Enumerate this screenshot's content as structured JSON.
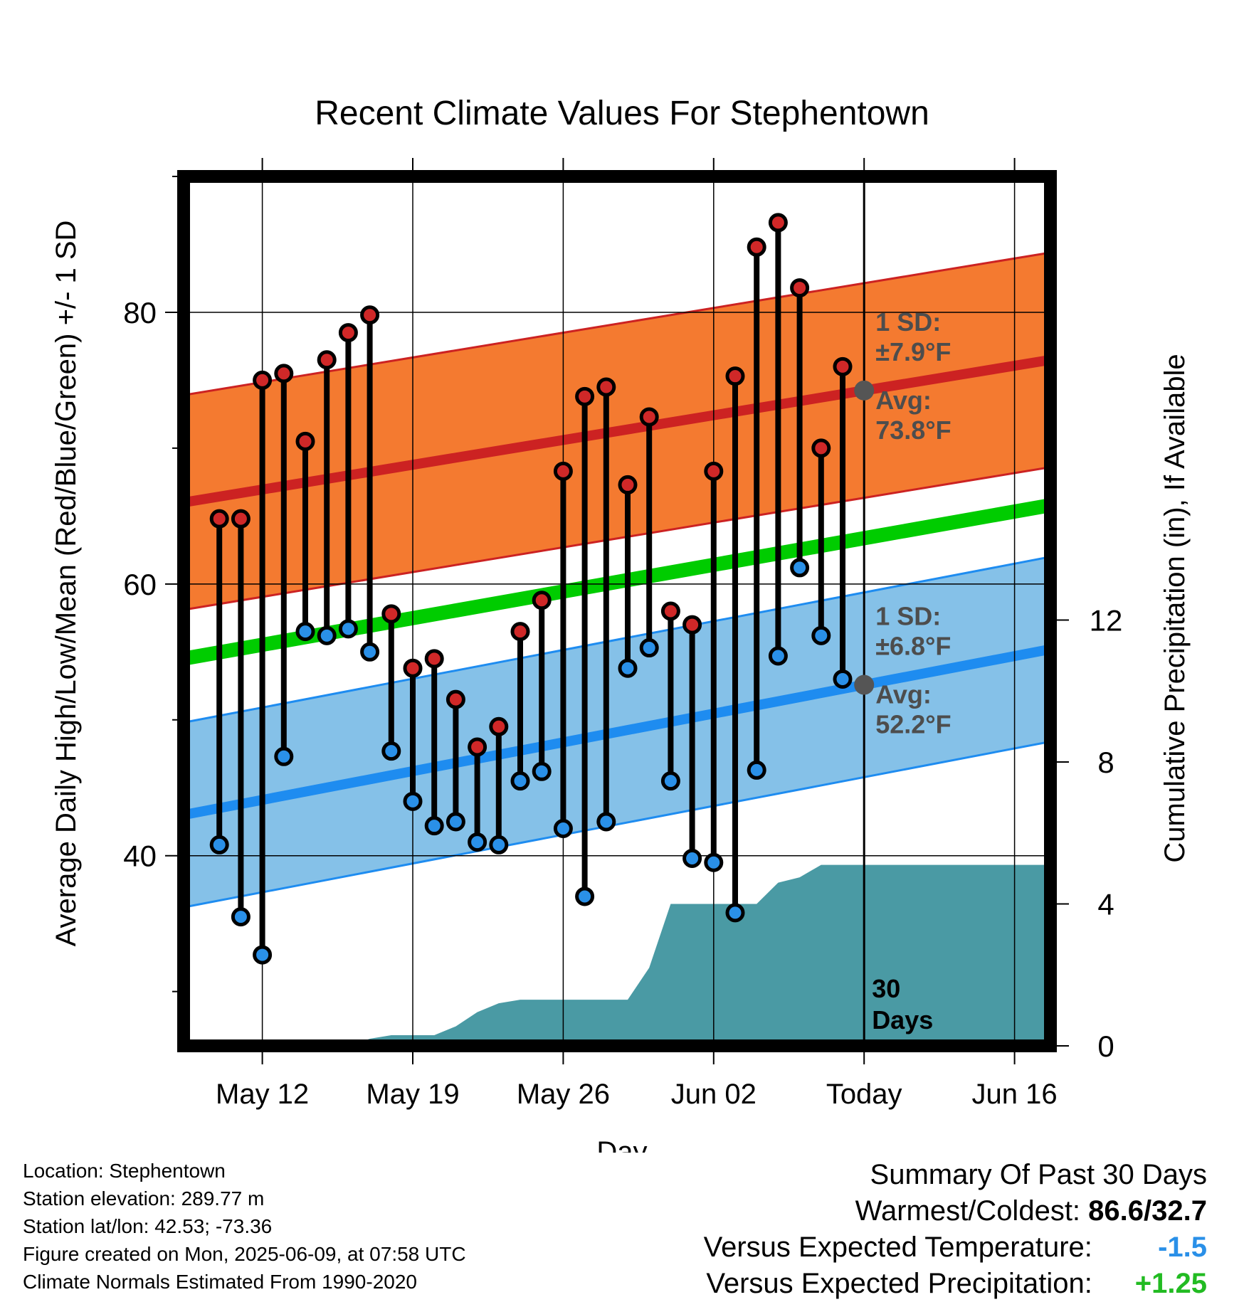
{
  "chart_data": {
    "type": "line",
    "title": "Recent Climate Values For Stephentown",
    "xlabel": "Day",
    "ylabel_left": "Average Daily High/Low/Mean (Red/Blue/Green) +/- 1 SD",
    "ylabel_right": "Cumulative Precipitation (in), If Available",
    "x_ticks": [
      "May 12",
      "May 19",
      "May 26",
      "Jun 02",
      "Today",
      "Jun 16"
    ],
    "x_range_days": [
      "May 09",
      "Jun 18"
    ],
    "today_index": 30,
    "today_label": "30 Days",
    "y_left_ticks": [
      40,
      60,
      80
    ],
    "y_left_range": [
      26,
      90
    ],
    "y_right_ticks": [
      0,
      4,
      8,
      12
    ],
    "y_right_range": [
      0,
      24.5
    ],
    "dates": [
      "May 10",
      "May 11",
      "May 12",
      "May 13",
      "May 14",
      "May 15",
      "May 16",
      "May 17",
      "May 18",
      "May 19",
      "May 20",
      "May 21",
      "May 22",
      "May 23",
      "May 24",
      "May 25",
      "May 26",
      "May 27",
      "May 28",
      "May 29",
      "May 30",
      "May 31",
      "Jun 01",
      "Jun 02",
      "Jun 03",
      "Jun 04",
      "Jun 05",
      "Jun 06",
      "Jun 07",
      "Jun 08"
    ],
    "series": [
      {
        "name": "High",
        "color": "#d02828",
        "values": [
          64.8,
          64.8,
          75.0,
          75.5,
          70.5,
          76.5,
          78.5,
          79.8,
          57.8,
          53.8,
          54.5,
          51.5,
          48.0,
          49.5,
          56.5,
          58.8,
          68.3,
          73.8,
          74.5,
          67.3,
          72.3,
          58.0,
          57.0,
          68.3,
          75.3,
          84.8,
          86.6,
          81.8,
          70.0,
          76.0
        ]
      },
      {
        "name": "Low",
        "color": "#2a90e8",
        "values": [
          40.8,
          35.5,
          32.7,
          47.3,
          56.5,
          56.2,
          56.7,
          55.0,
          47.7,
          44.0,
          42.2,
          42.5,
          41.0,
          40.8,
          45.5,
          46.2,
          42.0,
          37.0,
          42.5,
          53.8,
          55.3,
          45.5,
          39.8,
          39.5,
          35.8,
          46.3,
          54.7,
          61.2,
          56.2,
          53.0
        ]
      },
      {
        "name": "Cumulative Precipitation",
        "color": "#4a9aa4",
        "values": [
          0,
          0,
          0,
          0,
          0,
          0,
          0,
          0.2,
          0.3,
          0.3,
          0.3,
          0.55,
          0.95,
          1.2,
          1.3,
          1.3,
          1.3,
          1.3,
          1.3,
          1.3,
          2.2,
          4.0,
          4.0,
          4.0,
          4.0,
          4.0,
          4.6,
          4.75,
          5.1,
          5.1
        ]
      }
    ],
    "normals": {
      "high_mean_start": 66.0,
      "high_mean_end": 76.5,
      "high_sd": 7.9,
      "low_mean_start": 43.0,
      "low_mean_end": 55.2,
      "low_sd": 6.8,
      "mean_start": 54.5,
      "mean_end": 65.8,
      "high_color": "#f47a30",
      "high_line_color": "#cc2222",
      "low_color": "#85c1e8",
      "low_line_color": "#1e8cf0",
      "mean_color": "#00cc00"
    },
    "precip_fill_color": "#4a9aa4",
    "annotations": {
      "high_sd_label": "1 SD:",
      "high_sd_value": "±7.9°F",
      "high_avg_label": "Avg:",
      "high_avg_value": "73.8°F",
      "low_sd_label": "1 SD:",
      "low_sd_value": "±6.8°F",
      "low_avg_label": "Avg:",
      "low_avg_value": "52.2°F",
      "annotation_color": "#4d4d4d"
    }
  },
  "station": {
    "location": "Location: Stephentown",
    "elevation": "Station elevation: 289.77 m",
    "latlon": "Station lat/lon: 42.53; -73.36",
    "created": "Figure created on Mon, 2025-06-09, at 07:58 UTC",
    "normals": "Climate Normals Estimated From 1990-2020"
  },
  "summary": {
    "heading": "Summary Of Past 30 Days",
    "warmest_label": "Warmest/Coldest:",
    "warmest_value": "86.6/32.7",
    "temp_label": "Versus Expected Temperature:",
    "temp_value": "-1.5",
    "temp_color": "#2a90e8",
    "precip_label": "Versus Expected Precipitation:",
    "precip_value": "+1.25",
    "precip_color": "#22bb22"
  }
}
